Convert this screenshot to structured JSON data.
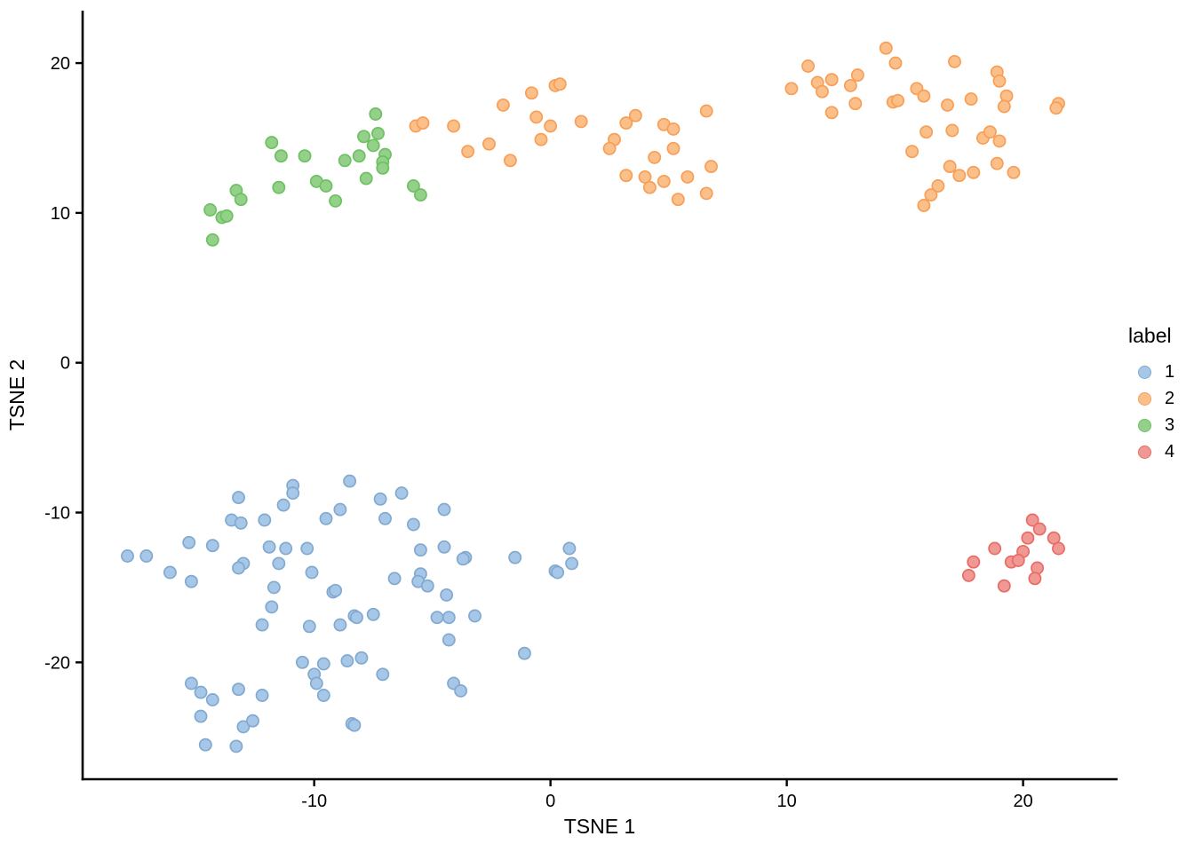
{
  "chart_data": {
    "type": "scatter",
    "title": "",
    "xlabel": "TSNE 1",
    "ylabel": "TSNE 2",
    "xlim": [
      -19.8,
      24.0
    ],
    "ylim": [
      -27.8,
      23.5
    ],
    "x_ticks": [
      "-10",
      "0",
      "10",
      "20"
    ],
    "x_tick_values": [
      -10,
      0,
      10,
      20
    ],
    "y_ticks": [
      "-20",
      "-10",
      "0",
      "10",
      "20"
    ],
    "y_tick_values": [
      -20,
      -10,
      0,
      10,
      20
    ],
    "grid": false,
    "legend_title": "label",
    "legend_position": "right",
    "series": [
      {
        "name": "1",
        "fill": "#a6c7e7",
        "stroke": "#82a9cf",
        "points": [
          [
            -8.5,
            -7.9
          ],
          [
            -10.9,
            -8.2
          ],
          [
            -10.9,
            -8.7
          ],
          [
            -13.2,
            -9.0
          ],
          [
            -11.3,
            -9.5
          ],
          [
            -8.9,
            -9.8
          ],
          [
            -9.5,
            -10.4
          ],
          [
            -13.5,
            -10.5
          ],
          [
            -13.1,
            -10.7
          ],
          [
            -12.1,
            -10.5
          ],
          [
            -15.3,
            -12.0
          ],
          [
            -14.3,
            -12.2
          ],
          [
            -11.9,
            -12.3
          ],
          [
            -11.2,
            -12.4
          ],
          [
            -10.3,
            -12.4
          ],
          [
            -17.9,
            -12.9
          ],
          [
            -17.1,
            -12.9
          ],
          [
            -13.0,
            -13.4
          ],
          [
            -13.2,
            -13.7
          ],
          [
            -11.5,
            -13.4
          ],
          [
            -10.1,
            -14.0
          ],
          [
            -16.1,
            -14.0
          ],
          [
            -15.2,
            -14.6
          ],
          [
            -11.7,
            -15.0
          ],
          [
            -9.2,
            -15.3
          ],
          [
            -9.1,
            -15.2
          ],
          [
            -11.8,
            -16.3
          ],
          [
            -12.2,
            -17.5
          ],
          [
            -8.3,
            -16.9
          ],
          [
            -10.2,
            -17.6
          ],
          [
            -8.9,
            -17.5
          ],
          [
            -7.2,
            -9.1
          ],
          [
            -6.3,
            -8.7
          ],
          [
            -4.5,
            -9.8
          ],
          [
            -7.0,
            -10.4
          ],
          [
            -5.8,
            -10.8
          ],
          [
            -5.5,
            -12.5
          ],
          [
            -4.5,
            -12.3
          ],
          [
            -3.6,
            -13.0
          ],
          [
            -3.7,
            -13.1
          ],
          [
            -1.5,
            -13.0
          ],
          [
            0.8,
            -12.4
          ],
          [
            0.9,
            -13.4
          ],
          [
            0.2,
            -13.9
          ],
          [
            0.3,
            -14.0
          ],
          [
            -6.6,
            -14.4
          ],
          [
            -5.5,
            -14.1
          ],
          [
            -5.6,
            -14.6
          ],
          [
            -5.2,
            -14.9
          ],
          [
            -4.4,
            -15.5
          ],
          [
            -8.2,
            -17.0
          ],
          [
            -7.5,
            -16.8
          ],
          [
            -4.8,
            -17.0
          ],
          [
            -4.3,
            -17.0
          ],
          [
            -3.2,
            -16.9
          ],
          [
            -10.5,
            -20.0
          ],
          [
            -9.6,
            -20.1
          ],
          [
            -8.6,
            -19.9
          ],
          [
            -8.0,
            -19.7
          ],
          [
            -7.1,
            -20.8
          ],
          [
            -10.0,
            -20.8
          ],
          [
            -9.9,
            -21.4
          ],
          [
            -9.6,
            -22.2
          ],
          [
            -15.2,
            -21.4
          ],
          [
            -14.8,
            -22.0
          ],
          [
            -14.3,
            -22.5
          ],
          [
            -13.2,
            -21.8
          ],
          [
            -12.2,
            -22.2
          ],
          [
            -14.8,
            -23.6
          ],
          [
            -13.0,
            -24.3
          ],
          [
            -12.6,
            -23.9
          ],
          [
            -14.6,
            -25.5
          ],
          [
            -13.3,
            -25.6
          ],
          [
            -8.4,
            -24.1
          ],
          [
            -8.3,
            -24.2
          ],
          [
            -4.3,
            -18.5
          ],
          [
            -1.1,
            -19.4
          ],
          [
            -4.1,
            -21.4
          ],
          [
            -3.8,
            -21.9
          ]
        ]
      },
      {
        "name": "2",
        "fill": "#fbc08a",
        "stroke": "#f89e57",
        "points": [
          [
            0.2,
            18.5
          ],
          [
            0.4,
            18.6
          ],
          [
            -0.8,
            18.0
          ],
          [
            -2.0,
            17.2
          ],
          [
            -0.6,
            16.4
          ],
          [
            0.0,
            15.8
          ],
          [
            -5.7,
            15.8
          ],
          [
            -5.4,
            16.0
          ],
          [
            -4.1,
            15.8
          ],
          [
            1.3,
            16.1
          ],
          [
            3.2,
            16.0
          ],
          [
            3.6,
            16.5
          ],
          [
            4.8,
            15.9
          ],
          [
            5.2,
            15.6
          ],
          [
            6.6,
            16.8
          ],
          [
            -0.4,
            14.9
          ],
          [
            2.7,
            14.9
          ],
          [
            -2.6,
            14.6
          ],
          [
            2.5,
            14.3
          ],
          [
            -3.5,
            14.1
          ],
          [
            5.2,
            14.3
          ],
          [
            -1.7,
            13.5
          ],
          [
            4.4,
            13.7
          ],
          [
            6.8,
            13.1
          ],
          [
            3.2,
            12.5
          ],
          [
            4.0,
            12.4
          ],
          [
            4.2,
            11.7
          ],
          [
            4.8,
            12.1
          ],
          [
            5.8,
            12.4
          ],
          [
            5.4,
            10.9
          ],
          [
            6.6,
            11.3
          ],
          [
            14.2,
            21.0
          ],
          [
            10.9,
            19.8
          ],
          [
            14.6,
            20.0
          ],
          [
            17.1,
            20.1
          ],
          [
            18.9,
            19.4
          ],
          [
            19.0,
            18.8
          ],
          [
            13.0,
            19.2
          ],
          [
            11.3,
            18.7
          ],
          [
            11.5,
            18.1
          ],
          [
            11.9,
            18.9
          ],
          [
            12.7,
            18.5
          ],
          [
            10.2,
            18.3
          ],
          [
            15.5,
            18.3
          ],
          [
            15.8,
            17.8
          ],
          [
            12.9,
            17.3
          ],
          [
            19.3,
            17.8
          ],
          [
            14.5,
            17.4
          ],
          [
            14.7,
            17.5
          ],
          [
            16.8,
            17.2
          ],
          [
            17.8,
            17.6
          ],
          [
            19.2,
            17.1
          ],
          [
            21.5,
            17.3
          ],
          [
            21.4,
            17.0
          ],
          [
            11.9,
            16.7
          ],
          [
            15.9,
            15.4
          ],
          [
            17.0,
            15.5
          ],
          [
            18.3,
            15.0
          ],
          [
            18.6,
            15.4
          ],
          [
            19.0,
            14.8
          ],
          [
            15.3,
            14.1
          ],
          [
            16.9,
            13.1
          ],
          [
            17.3,
            12.5
          ],
          [
            17.9,
            12.7
          ],
          [
            18.9,
            13.3
          ],
          [
            19.6,
            12.7
          ],
          [
            16.4,
            11.8
          ],
          [
            16.1,
            11.2
          ],
          [
            15.8,
            10.5
          ]
        ]
      },
      {
        "name": "3",
        "fill": "#95d08b",
        "stroke": "#6cc161",
        "points": [
          [
            -7.4,
            16.6
          ],
          [
            -7.3,
            15.3
          ],
          [
            -7.9,
            15.1
          ],
          [
            -11.8,
            14.7
          ],
          [
            -7.5,
            14.5
          ],
          [
            -7.0,
            13.9
          ],
          [
            -11.4,
            13.8
          ],
          [
            -10.4,
            13.8
          ],
          [
            -8.1,
            13.8
          ],
          [
            -8.7,
            13.5
          ],
          [
            -7.1,
            13.4
          ],
          [
            -7.1,
            13.0
          ],
          [
            -7.8,
            12.3
          ],
          [
            -9.9,
            12.1
          ],
          [
            -9.5,
            11.8
          ],
          [
            -5.8,
            11.8
          ],
          [
            -11.5,
            11.7
          ],
          [
            -5.5,
            11.2
          ],
          [
            -13.3,
            11.5
          ],
          [
            -13.1,
            10.9
          ],
          [
            -9.1,
            10.8
          ],
          [
            -14.4,
            10.2
          ],
          [
            -13.9,
            9.7
          ],
          [
            -13.7,
            9.8
          ],
          [
            -14.3,
            8.2
          ]
        ]
      },
      {
        "name": "4",
        "fill": "#f09994",
        "stroke": "#e86c65",
        "points": [
          [
            20.4,
            -10.5
          ],
          [
            20.7,
            -11.1
          ],
          [
            20.2,
            -11.7
          ],
          [
            21.3,
            -11.7
          ],
          [
            21.5,
            -12.4
          ],
          [
            18.8,
            -12.4
          ],
          [
            20.0,
            -12.6
          ],
          [
            19.5,
            -13.3
          ],
          [
            19.8,
            -13.2
          ],
          [
            17.9,
            -13.3
          ],
          [
            20.6,
            -13.7
          ],
          [
            17.7,
            -14.2
          ],
          [
            20.5,
            -14.4
          ],
          [
            19.2,
            -14.9
          ]
        ]
      }
    ]
  }
}
